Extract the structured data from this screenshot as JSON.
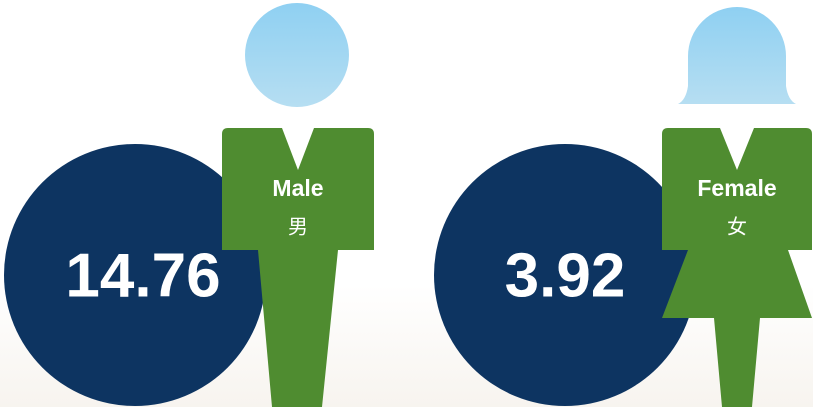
{
  "figures": [
    {
      "value": 14.76,
      "label": "Male",
      "label_zh": "男"
    },
    {
      "value": 3.92,
      "label": "Female",
      "label_zh": "女"
    }
  ]
}
